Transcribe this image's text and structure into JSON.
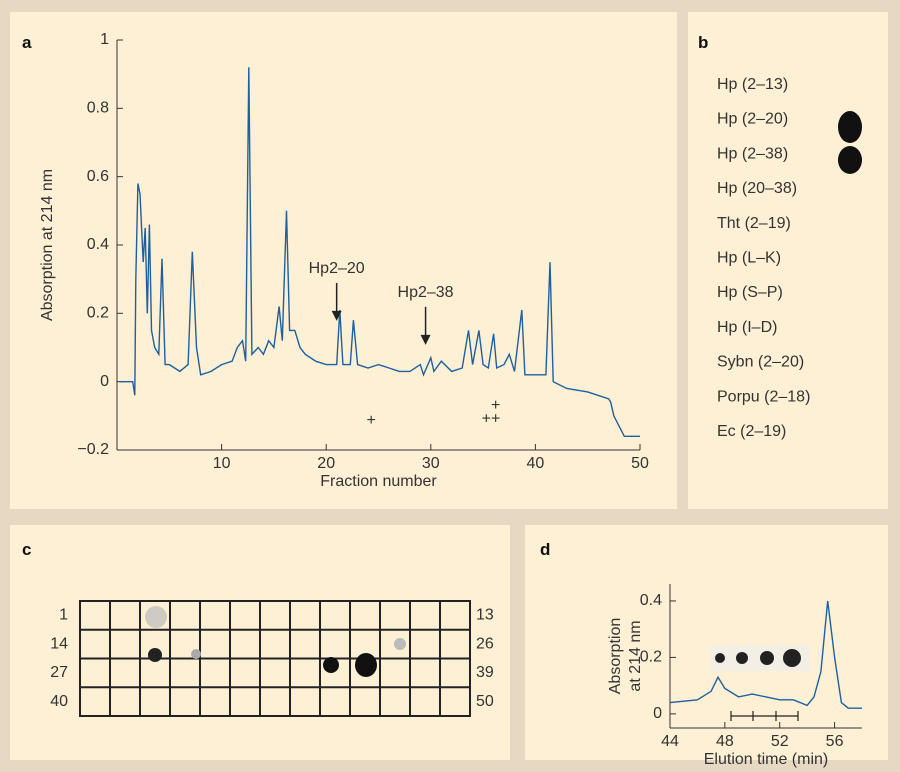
{
  "chart_data": [
    {
      "type": "line",
      "panel": "a",
      "xlabel": "Fraction number",
      "ylabel": "Absorption at 214 nm",
      "color": "#1f5fa0",
      "xlim": [
        0,
        50
      ],
      "xticks": [
        10,
        20,
        30,
        40,
        50
      ],
      "ylim": [
        -0.2,
        1
      ],
      "yticks": [
        {
          "value": -0.2,
          "label": "−0.2"
        },
        0,
        0.2,
        0.4,
        0.6,
        0.8,
        1
      ],
      "x": [
        0.2,
        1.5,
        1.7,
        1.8,
        2.0,
        2.2,
        2.5,
        2.7,
        2.9,
        3.1,
        3.3,
        3.6,
        4.0,
        4.3,
        4.6,
        5,
        6,
        6.8,
        7.2,
        7.6,
        8,
        9,
        10,
        11,
        11.5,
        12,
        12.3,
        12.6,
        12.9,
        13.5,
        14,
        14.5,
        15,
        15.5,
        15.8,
        16.2,
        16.5,
        17,
        17.5,
        18,
        19,
        20,
        21,
        21.3,
        21.6,
        22.3,
        22.6,
        23,
        24,
        25,
        26,
        27,
        28,
        29,
        29.3,
        30,
        30.3,
        31,
        32,
        33,
        33.6,
        34,
        34.6,
        35,
        35.5,
        36,
        36.3,
        37,
        37.5,
        38,
        38.7,
        39,
        40,
        41,
        41.4,
        41.7,
        43,
        45,
        47,
        47.2,
        47.5,
        48.5,
        50
      ],
      "values": [
        0,
        0,
        -0.04,
        0.3,
        0.58,
        0.55,
        0.35,
        0.45,
        0.2,
        0.46,
        0.15,
        0.1,
        0.08,
        0.36,
        0.05,
        0.05,
        0.03,
        0.05,
        0.38,
        0.1,
        0.02,
        0.03,
        0.05,
        0.06,
        0.1,
        0.12,
        0.06,
        0.92,
        0.08,
        0.1,
        0.08,
        0.12,
        0.1,
        0.22,
        0.12,
        0.5,
        0.15,
        0.15,
        0.1,
        0.08,
        0.06,
        0.05,
        0.05,
        0.21,
        0.05,
        0.05,
        0.18,
        0.05,
        0.04,
        0.05,
        0.04,
        0.03,
        0.03,
        0.05,
        0.02,
        0.07,
        0.03,
        0.06,
        0.03,
        0.04,
        0.15,
        0.05,
        0.15,
        0.05,
        0.04,
        0.14,
        0.04,
        0.05,
        0.08,
        0.03,
        0.21,
        0.02,
        0.02,
        0.02,
        0.35,
        0,
        -0.02,
        -0.03,
        -0.05,
        -0.06,
        -0.1,
        -0.16,
        -0.16
      ],
      "annotations": [
        {
          "text": "Hp2–20",
          "x": 21,
          "y": 0.33,
          "arrow": true
        },
        {
          "text": "Hp2–38",
          "x": 29.5,
          "y": 0.26,
          "arrow": true
        },
        {
          "text": "+",
          "x": 24.3,
          "y": -0.115
        },
        {
          "text": "+",
          "x": 35.3,
          "y": -0.11
        },
        {
          "text": "+",
          "x": 36.2,
          "y": -0.11
        },
        {
          "text": "+",
          "x": 36.2,
          "y": -0.07
        }
      ]
    },
    {
      "type": "line",
      "panel": "d",
      "xlabel": "Elution time (min)",
      "ylabel": [
        "Absorption",
        "at 214 nm"
      ],
      "color": "#1f5fa0",
      "xlim": [
        44,
        58
      ],
      "xticks": [
        44,
        48,
        52,
        56
      ],
      "ylim": [
        -0.05,
        0.46
      ],
      "yticks": [
        0,
        0.2,
        0.4
      ],
      "x": [
        44,
        46,
        47,
        47.5,
        48,
        49,
        50,
        51,
        52,
        53,
        54,
        54.5,
        55,
        55.5,
        56,
        56.5,
        57,
        58
      ],
      "values": [
        0.04,
        0.05,
        0.08,
        0.13,
        0.09,
        0.06,
        0.07,
        0.06,
        0.05,
        0.05,
        0.03,
        0.06,
        0.15,
        0.4,
        0.2,
        0.04,
        0.02,
        0.02
      ]
    }
  ],
  "panel_b": {
    "label": "b",
    "items": [
      "Hp (2–13)",
      "Hp (2–20)",
      "Hp (2–38)",
      "Hp (20–38)",
      "Tht (2–19)",
      "Hp (L–K)",
      "Hp (S–P)",
      "Hp (I–D)",
      "Sybn (2–20)",
      "Porpu (2–18)",
      "Ec (2–19)"
    ]
  },
  "panel_c": {
    "label": "c",
    "row_labels": [
      "1",
      "14",
      "27",
      "40"
    ],
    "end_labels": [
      "13",
      "26",
      "39",
      "50"
    ]
  }
}
